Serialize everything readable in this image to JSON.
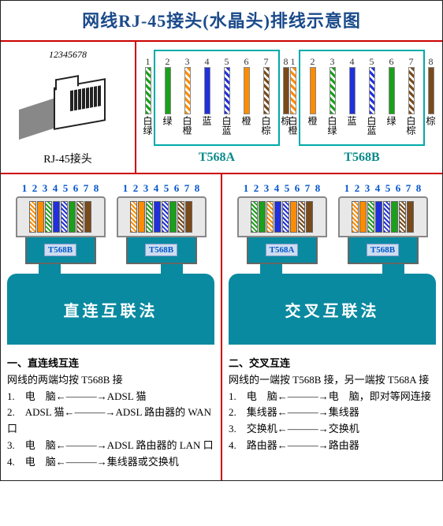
{
  "title": "网线RJ-45接头(水晶头)排线示意图",
  "plug_label": "RJ-45接头",
  "pin_numbers": [
    "1",
    "2",
    "3",
    "4",
    "5",
    "6",
    "7",
    "8"
  ],
  "colors": {
    "green": "#1aa01a",
    "orange": "#ff8c00",
    "blue": "#2030dd",
    "brown": "#7a4a1a"
  },
  "standards": {
    "t568a": {
      "name": "T568A",
      "wires": [
        {
          "type": "striped",
          "color": "green",
          "label": "白绿"
        },
        {
          "type": "solid",
          "color": "green",
          "label": "绿"
        },
        {
          "type": "striped",
          "color": "orange",
          "label": "白橙"
        },
        {
          "type": "solid",
          "color": "blue",
          "label": "蓝"
        },
        {
          "type": "striped",
          "color": "blue",
          "label": "白蓝"
        },
        {
          "type": "solid",
          "color": "orange",
          "label": "橙"
        },
        {
          "type": "striped",
          "color": "brown",
          "label": "白棕"
        },
        {
          "type": "solid",
          "color": "brown",
          "label": "棕"
        }
      ]
    },
    "t568b": {
      "name": "T568B",
      "wires": [
        {
          "type": "striped",
          "color": "orange",
          "label": "白橙"
        },
        {
          "type": "solid",
          "color": "orange",
          "label": "橙"
        },
        {
          "type": "striped",
          "color": "green",
          "label": "白绿"
        },
        {
          "type": "solid",
          "color": "blue",
          "label": "蓝"
        },
        {
          "type": "striped",
          "color": "blue",
          "label": "白蓝"
        },
        {
          "type": "solid",
          "color": "green",
          "label": "绿"
        },
        {
          "type": "striped",
          "color": "brown",
          "label": "白棕"
        },
        {
          "type": "solid",
          "color": "brown",
          "label": "棕"
        }
      ]
    }
  },
  "left": {
    "plug_a_tag": "T568B",
    "plug_b_tag": "T568B",
    "plug_a_std": "t568b",
    "plug_b_std": "t568b",
    "method": "直连互联法",
    "heading": "一、直连线互连",
    "sub": "网线的两端均按 T568B 接",
    "rows": [
      {
        "n": "1.",
        "l": "电　脑",
        "r": "ADSL 猫"
      },
      {
        "n": "2.",
        "l": "ADSL 猫",
        "r": "ADSL 路由器的 WAN 口"
      },
      {
        "n": "3.",
        "l": "电　脑",
        "r": "ADSL 路由器的 LAN 口"
      },
      {
        "n": "4.",
        "l": "电　脑",
        "r": "集线器或交换机"
      }
    ]
  },
  "right": {
    "plug_a_tag": "T568A",
    "plug_b_tag": "T568B",
    "plug_a_std": "t568a",
    "plug_b_std": "t568b",
    "method": "交叉互联法",
    "heading": "二、交叉互连",
    "sub": "网线的一端按 T568B 接，另一端按 T568A 接",
    "rows": [
      {
        "n": "1.",
        "l": "电　脑",
        "r": "电　脑，即对等网连接"
      },
      {
        "n": "2.",
        "l": "集线器",
        "r": "集线器"
      },
      {
        "n": "3.",
        "l": "交换机",
        "r": "交换机"
      },
      {
        "n": "4.",
        "l": "路由器",
        "r": "路由器"
      }
    ]
  },
  "arrow": "←———→"
}
